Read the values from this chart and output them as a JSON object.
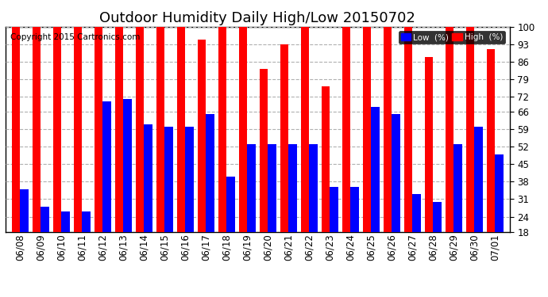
{
  "title": "Outdoor Humidity Daily High/Low 20150702",
  "copyright": "Copyright 2015 Cartronics.com",
  "legend_low": "Low  (%)",
  "legend_high": "High  (%)",
  "dates": [
    "06/08",
    "06/09",
    "06/10",
    "06/11",
    "06/12",
    "06/13",
    "06/14",
    "06/15",
    "06/16",
    "06/17",
    "06/18",
    "06/19",
    "06/20",
    "06/21",
    "06/22",
    "06/23",
    "06/24",
    "06/25",
    "06/26",
    "06/27",
    "06/28",
    "06/29",
    "06/30",
    "07/01"
  ],
  "high": [
    100,
    100,
    100,
    100,
    100,
    100,
    100,
    100,
    100,
    95,
    100,
    100,
    83,
    93,
    100,
    76,
    100,
    100,
    100,
    100,
    88,
    100,
    100,
    91
  ],
  "low": [
    35,
    28,
    26,
    26,
    70,
    71,
    61,
    60,
    60,
    65,
    40,
    53,
    53,
    53,
    53,
    36,
    36,
    68,
    65,
    33,
    30,
    53,
    60,
    49
  ],
  "ylim": [
    18,
    100
  ],
  "yticks": [
    18,
    24,
    31,
    38,
    45,
    52,
    59,
    66,
    72,
    79,
    86,
    93,
    100
  ],
  "bg_color": "#ffffff",
  "plot_bg_color": "#ffffff",
  "bar_high_color": "#ff0000",
  "bar_low_color": "#0000ff",
  "grid_color": "#b0b0b0",
  "title_fontsize": 13,
  "copyright_fontsize": 7.5,
  "tick_fontsize": 8.5,
  "bar_width": 0.4
}
